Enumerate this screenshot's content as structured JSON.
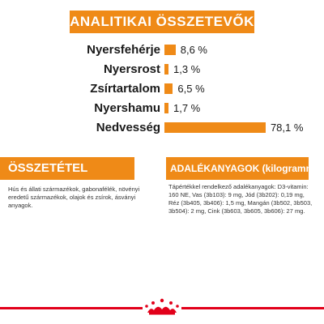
{
  "colors": {
    "accent": "#ef8a17",
    "brand_red": "#e2001a"
  },
  "header": {
    "title": "ANALITIKAI ÖSSZETEVŐK"
  },
  "analytics": [
    {
      "label": "Nyersfehérje",
      "value_text": "8,6 %",
      "percent": 8.6
    },
    {
      "label": "Nyersrost",
      "value_text": "1,3 %",
      "percent": 1.3
    },
    {
      "label": "Zsírtartalom",
      "value_text": "6,5 %",
      "percent": 6.5
    },
    {
      "label": "Nyershamu",
      "value_text": "1,7 %",
      "percent": 1.7
    },
    {
      "label": "Nedvesség",
      "value_text": "78,1 %",
      "percent": 78.1
    }
  ],
  "composition": {
    "title": "ÖSSZETÉTEL",
    "text": "Hús és állati származékok, gabonafélék, növényi eredetű származékok, olajok és zsírok, ásványi anyagok."
  },
  "additives": {
    "title": "ADALÉKANYAGOK (kilogrammonként)",
    "text": "Tápértékkel rendelkező adalékanyagok: D3-vitamin: 160 NE, Vas (3b103): 9 mg, Jód (3b202): 0,19 mg, Réz (3b405, 3b406): 1,5 mg, Mangán (3b502, 3b503, 3b504): 2 mg, Cink (3b603, 3b605, 3b606): 27 mg."
  },
  "footer": {
    "logo_icon": "crown-logo-icon"
  }
}
